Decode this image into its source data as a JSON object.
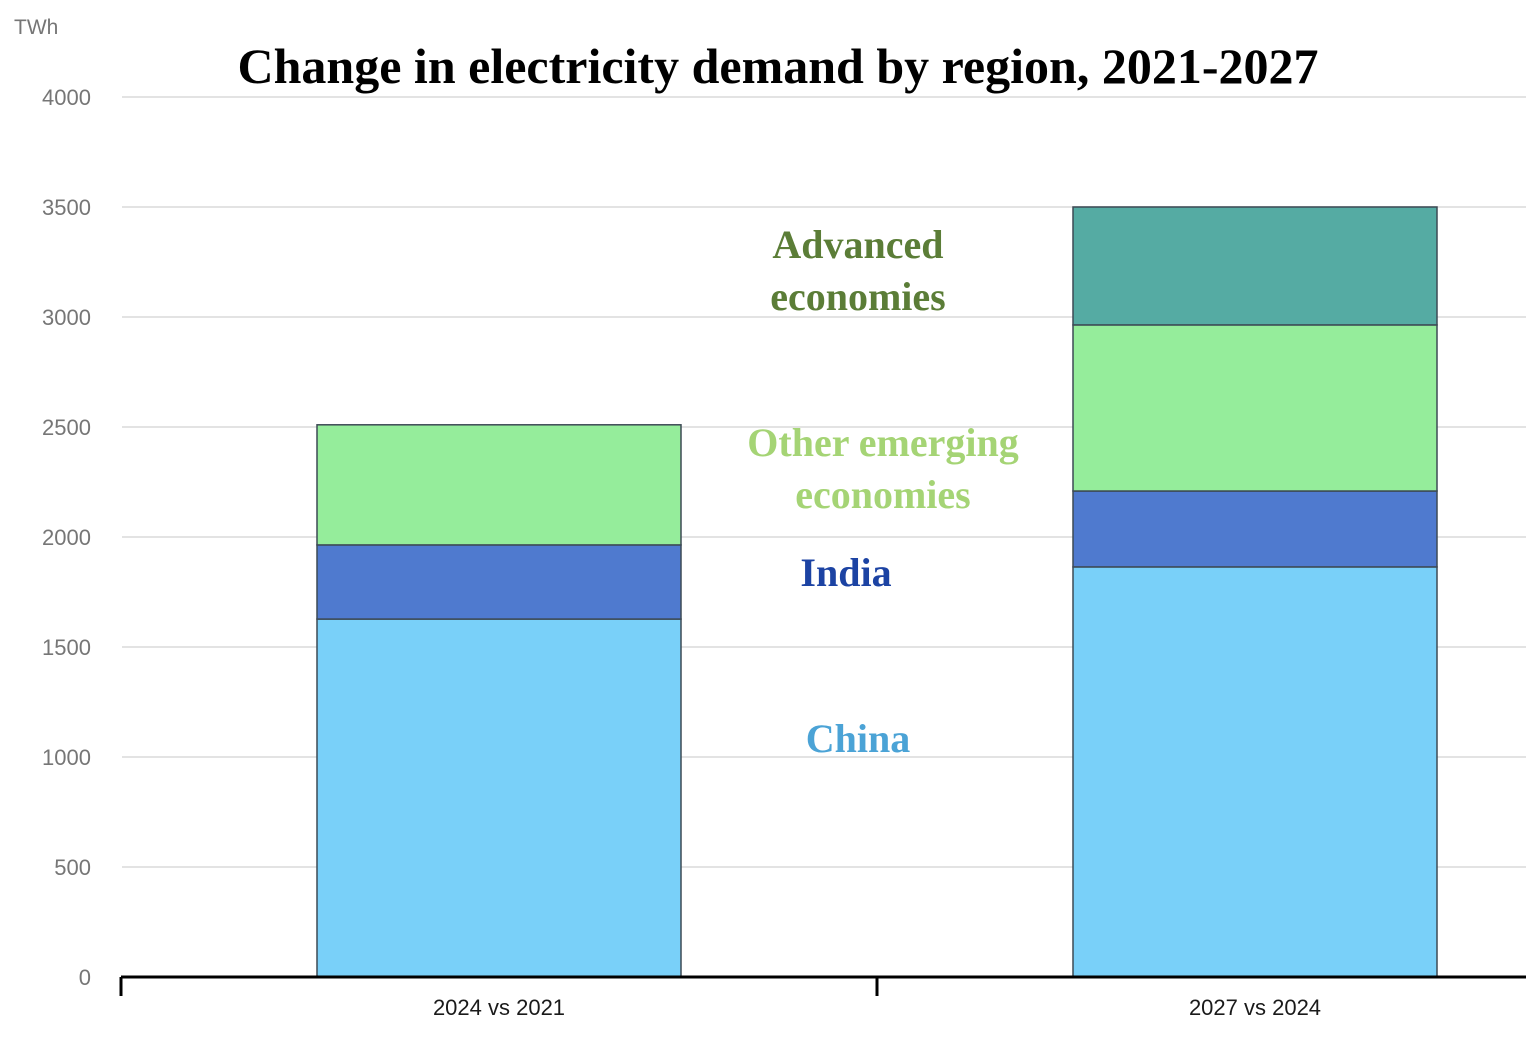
{
  "chart_data": {
    "type": "bar",
    "stacked": true,
    "title": "Change in electricity demand by region, 2021-2027",
    "ylabel": "TWh",
    "xlabel": "",
    "ylim": [
      0,
      4000
    ],
    "yticks": [
      0,
      500,
      1000,
      1500,
      2000,
      2500,
      3000,
      3500,
      4000
    ],
    "ytick_labels": [
      "0",
      "500",
      "1000",
      "1500",
      "2000",
      "2500",
      "3000",
      "3500",
      "4000"
    ],
    "grid": true,
    "legend": "inline annotations between bars",
    "categories": [
      "2024 vs 2021",
      "2027 vs 2024"
    ],
    "series": [
      {
        "name": "China",
        "color": "#79d0f9",
        "label_color": "#4ba3d6",
        "values": [
          1627,
          1864
        ]
      },
      {
        "name": "India",
        "color": "#4f7acf",
        "label_color": "#1c43a3",
        "values": [
          337,
          345
        ]
      },
      {
        "name": "Other emerging economies",
        "color": "#95ed9b",
        "label_color": "#a5d475",
        "values": [
          546,
          755
        ]
      },
      {
        "name": "Advanced economies",
        "color": "#55aba3",
        "label_color": "#5b7d37",
        "values": [
          0,
          536
        ]
      }
    ],
    "annotations": [
      {
        "series": "Advanced economies",
        "lines": [
          "Advanced",
          "economies"
        ]
      },
      {
        "series": "Other emerging economies",
        "lines": [
          "Other emerging",
          "economies"
        ]
      },
      {
        "series": "India",
        "lines": [
          "India"
        ]
      },
      {
        "series": "China",
        "lines": [
          "China"
        ]
      }
    ]
  }
}
